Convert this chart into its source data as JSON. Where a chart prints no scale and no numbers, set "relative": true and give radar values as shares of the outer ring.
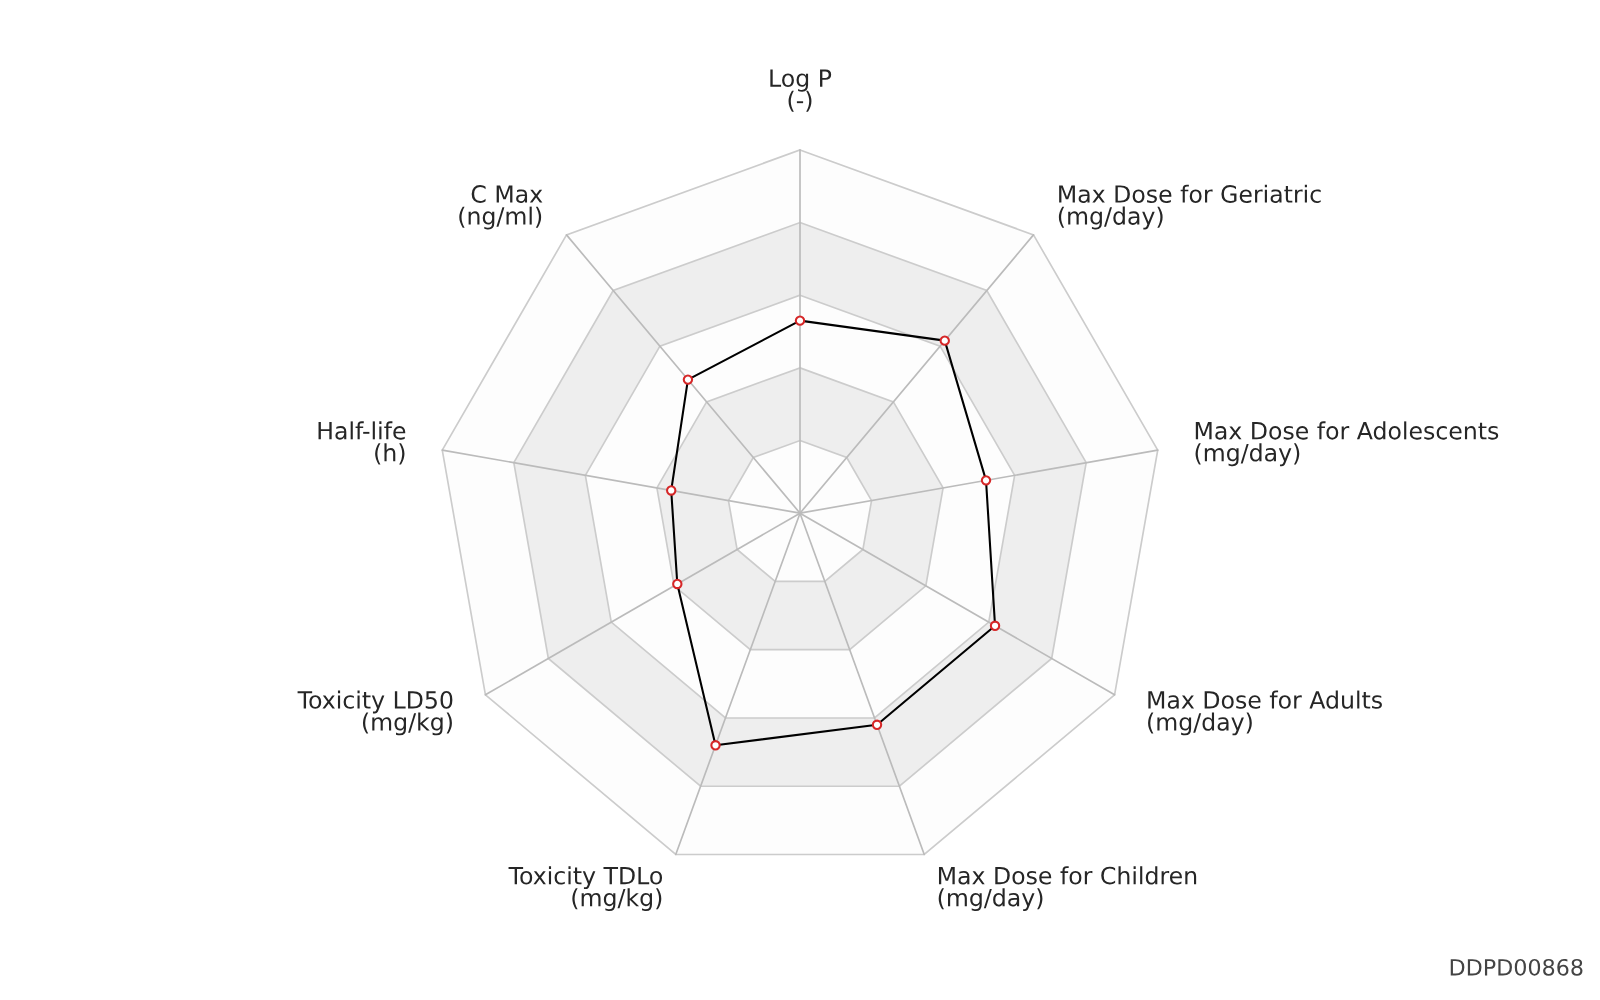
{
  "chart_data": {
    "type": "radar",
    "relative": true,
    "grid": true,
    "marker": "circle",
    "categories": [
      "Log P\n(-)",
      "Max Dose for Geriatric\n(mg/day)",
      "Max Dose for Adolescents\n(mg/day)",
      "Max Dose for Adults\n(mg/day)",
      "Max Dose for Children\n(mg/day)",
      "Toxicity TDLo\n(mg/kg)",
      "Toxicity LD50\n(mg/kg)",
      "Half-life\n(h)",
      "C Max\n(ng/ml)"
    ],
    "series": [
      {
        "color": "#000000",
        "values": [
          0.53,
          0.62,
          0.52,
          0.62,
          0.62,
          0.68,
          0.39,
          0.36,
          0.48
        ]
      }
    ],
    "annotations": [
      "DDPD00868"
    ]
  }
}
